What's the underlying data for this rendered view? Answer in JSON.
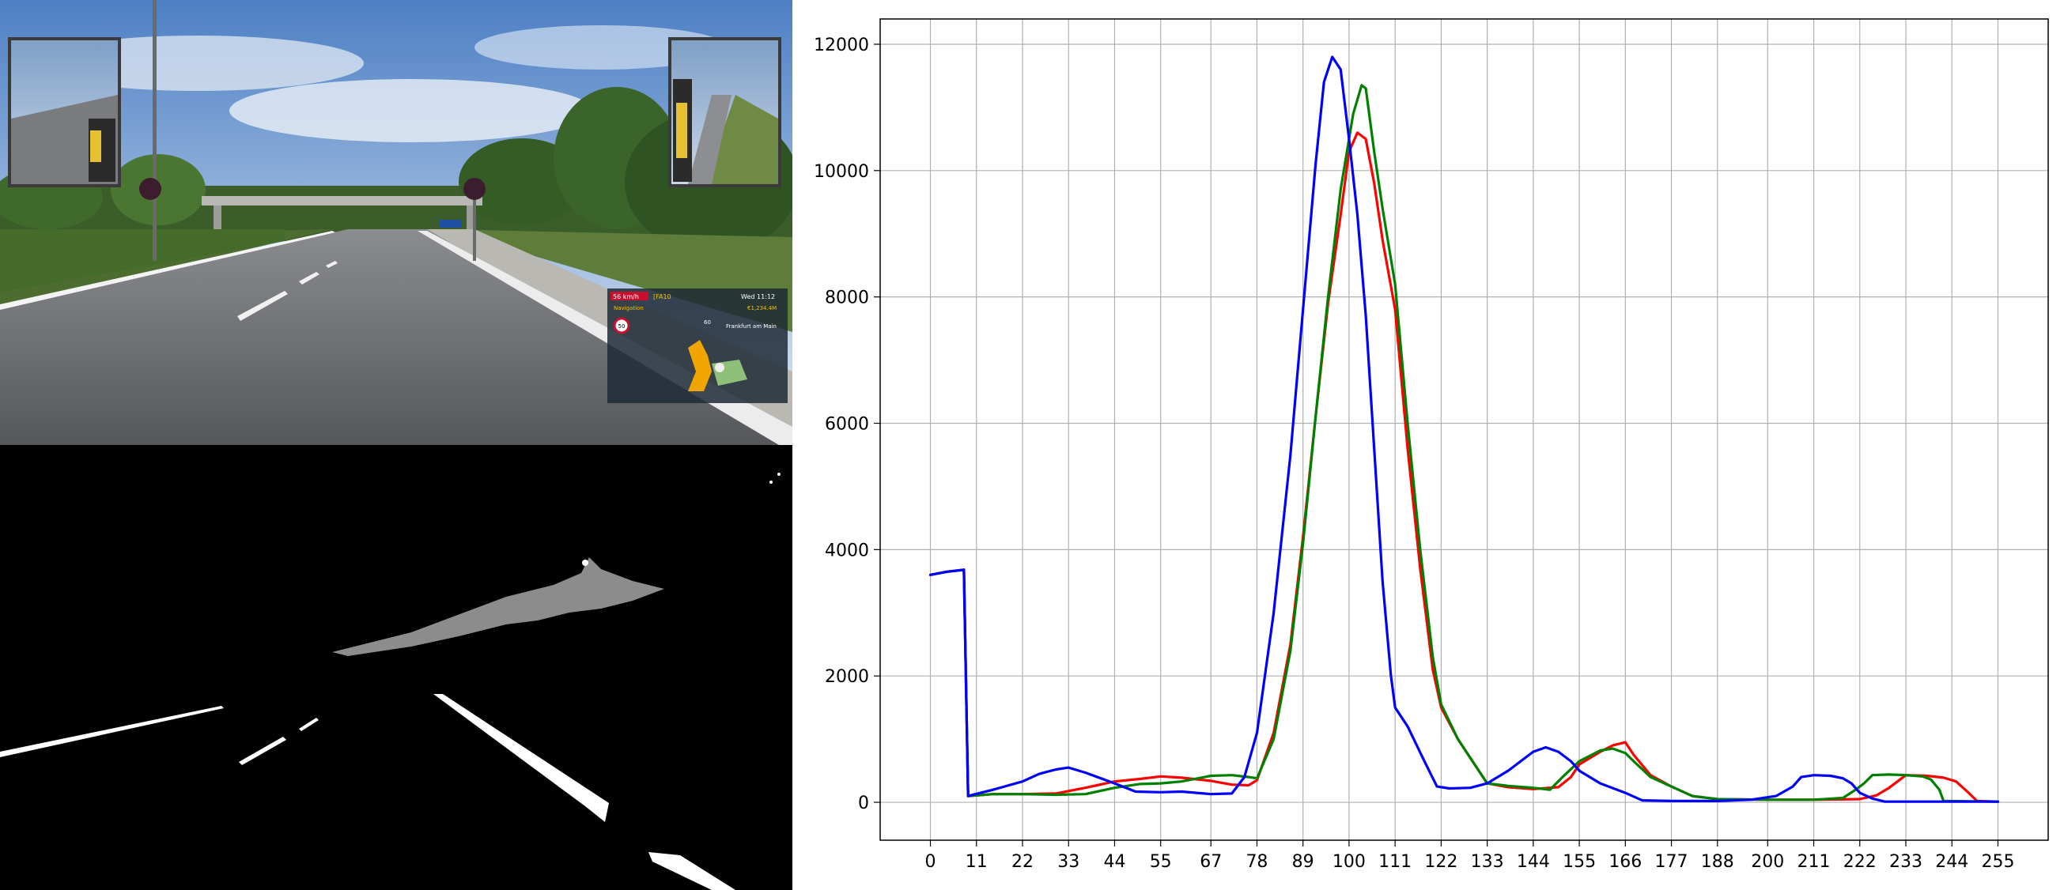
{
  "hud": {
    "speed": "56 km/h",
    "road_id": "[FA10",
    "time": "Wed 11:12",
    "navigation_label": "Navigation",
    "money": "€1,234.4M",
    "destination": "Frankfurt am Main",
    "speed_limit": "50",
    "distance": "60"
  },
  "chart_data": {
    "type": "line",
    "title": "",
    "xlabel": "",
    "ylabel": "",
    "xlim": [
      -12,
      267
    ],
    "ylim": [
      -600,
      12400
    ],
    "grid": true,
    "x_ticks": [
      0,
      11,
      22,
      33,
      44,
      55,
      67,
      78,
      89,
      100,
      111,
      122,
      133,
      144,
      155,
      166,
      177,
      188,
      200,
      211,
      222,
      233,
      244,
      255
    ],
    "y_ticks": [
      0,
      2000,
      4000,
      6000,
      8000,
      10000,
      12000
    ],
    "series": [
      {
        "color": "#ff0000",
        "points": [
          [
            0,
            3600
          ],
          [
            4,
            3650
          ],
          [
            8,
            3680
          ],
          [
            9,
            100
          ],
          [
            15,
            130
          ],
          [
            22,
            130
          ],
          [
            30,
            140
          ],
          [
            37,
            230
          ],
          [
            44,
            330
          ],
          [
            50,
            370
          ],
          [
            55,
            410
          ],
          [
            60,
            390
          ],
          [
            67,
            340
          ],
          [
            72,
            280
          ],
          [
            76,
            270
          ],
          [
            78,
            350
          ],
          [
            82,
            1100
          ],
          [
            86,
            2500
          ],
          [
            89,
            4200
          ],
          [
            92,
            6100
          ],
          [
            95,
            7900
          ],
          [
            98,
            9300
          ],
          [
            100,
            10300
          ],
          [
            102,
            10600
          ],
          [
            104,
            10500
          ],
          [
            106,
            9800
          ],
          [
            108,
            8900
          ],
          [
            111,
            7800
          ],
          [
            114,
            5600
          ],
          [
            117,
            3700
          ],
          [
            120,
            2100
          ],
          [
            122,
            1500
          ],
          [
            126,
            1000
          ],
          [
            130,
            600
          ],
          [
            133,
            300
          ],
          [
            138,
            240
          ],
          [
            144,
            210
          ],
          [
            150,
            240
          ],
          [
            153,
            400
          ],
          [
            155,
            600
          ],
          [
            160,
            800
          ],
          [
            163,
            900
          ],
          [
            166,
            950
          ],
          [
            168,
            750
          ],
          [
            172,
            430
          ],
          [
            177,
            250
          ],
          [
            182,
            100
          ],
          [
            188,
            50
          ],
          [
            200,
            40
          ],
          [
            211,
            40
          ],
          [
            222,
            50
          ],
          [
            226,
            110
          ],
          [
            229,
            230
          ],
          [
            233,
            430
          ],
          [
            238,
            420
          ],
          [
            242,
            390
          ],
          [
            245,
            330
          ],
          [
            248,
            150
          ],
          [
            250,
            20
          ],
          [
            255,
            10
          ]
        ]
      },
      {
        "color": "#008000",
        "points": [
          [
            0,
            3600
          ],
          [
            4,
            3650
          ],
          [
            8,
            3680
          ],
          [
            9,
            100
          ],
          [
            15,
            130
          ],
          [
            22,
            130
          ],
          [
            30,
            120
          ],
          [
            37,
            130
          ],
          [
            44,
            230
          ],
          [
            50,
            290
          ],
          [
            55,
            300
          ],
          [
            60,
            330
          ],
          [
            67,
            420
          ],
          [
            72,
            430
          ],
          [
            76,
            400
          ],
          [
            78,
            380
          ],
          [
            82,
            1000
          ],
          [
            86,
            2400
          ],
          [
            89,
            4100
          ],
          [
            92,
            6100
          ],
          [
            95,
            8000
          ],
          [
            98,
            9700
          ],
          [
            101,
            10900
          ],
          [
            103,
            11350
          ],
          [
            104,
            11300
          ],
          [
            106,
            10300
          ],
          [
            108,
            9400
          ],
          [
            111,
            8200
          ],
          [
            114,
            6000
          ],
          [
            117,
            4000
          ],
          [
            120,
            2300
          ],
          [
            122,
            1550
          ],
          [
            126,
            1000
          ],
          [
            130,
            600
          ],
          [
            133,
            300
          ],
          [
            138,
            260
          ],
          [
            144,
            230
          ],
          [
            148,
            200
          ],
          [
            151,
            400
          ],
          [
            155,
            650
          ],
          [
            160,
            820
          ],
          [
            163,
            850
          ],
          [
            166,
            780
          ],
          [
            168,
            650
          ],
          [
            172,
            400
          ],
          [
            177,
            250
          ],
          [
            182,
            100
          ],
          [
            188,
            50
          ],
          [
            200,
            40
          ],
          [
            211,
            40
          ],
          [
            218,
            70
          ],
          [
            221,
            200
          ],
          [
            223,
            300
          ],
          [
            225,
            430
          ],
          [
            229,
            440
          ],
          [
            233,
            430
          ],
          [
            237,
            410
          ],
          [
            239,
            360
          ],
          [
            241,
            200
          ],
          [
            242,
            20
          ],
          [
            255,
            10
          ]
        ]
      },
      {
        "color": "#0000ff",
        "points": [
          [
            0,
            3600
          ],
          [
            4,
            3650
          ],
          [
            8,
            3680
          ],
          [
            9,
            100
          ],
          [
            15,
            200
          ],
          [
            22,
            330
          ],
          [
            26,
            450
          ],
          [
            30,
            520
          ],
          [
            33,
            550
          ],
          [
            37,
            470
          ],
          [
            44,
            300
          ],
          [
            49,
            170
          ],
          [
            55,
            160
          ],
          [
            60,
            170
          ],
          [
            67,
            130
          ],
          [
            72,
            140
          ],
          [
            75,
            400
          ],
          [
            78,
            1100
          ],
          [
            82,
            3000
          ],
          [
            86,
            5500
          ],
          [
            89,
            7800
          ],
          [
            92,
            10100
          ],
          [
            94,
            11400
          ],
          [
            96,
            11800
          ],
          [
            98,
            11600
          ],
          [
            100,
            10500
          ],
          [
            102,
            9300
          ],
          [
            104,
            7700
          ],
          [
            106,
            5600
          ],
          [
            108,
            3500
          ],
          [
            110,
            2000
          ],
          [
            111,
            1500
          ],
          [
            114,
            1200
          ],
          [
            118,
            650
          ],
          [
            121,
            250
          ],
          [
            124,
            220
          ],
          [
            129,
            230
          ],
          [
            133,
            300
          ],
          [
            138,
            500
          ],
          [
            144,
            800
          ],
          [
            147,
            870
          ],
          [
            150,
            800
          ],
          [
            153,
            650
          ],
          [
            155,
            500
          ],
          [
            160,
            300
          ],
          [
            166,
            150
          ],
          [
            170,
            30
          ],
          [
            177,
            20
          ],
          [
            188,
            20
          ],
          [
            196,
            40
          ],
          [
            202,
            100
          ],
          [
            206,
            250
          ],
          [
            208,
            400
          ],
          [
            211,
            430
          ],
          [
            215,
            420
          ],
          [
            218,
            380
          ],
          [
            220,
            300
          ],
          [
            222,
            150
          ],
          [
            225,
            60
          ],
          [
            228,
            10
          ],
          [
            255,
            10
          ]
        ]
      }
    ]
  }
}
